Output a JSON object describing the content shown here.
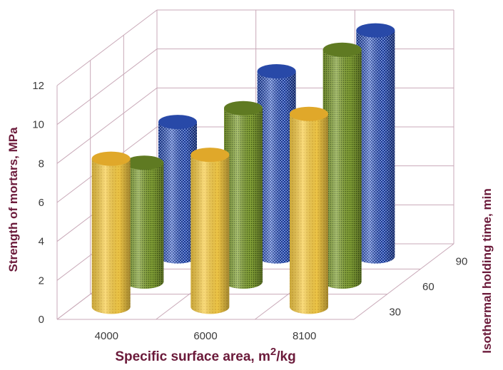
{
  "chart_data": {
    "type": "bar",
    "style": "3d-cylinder",
    "title": "",
    "xlabel": "Specific surface area, m²/kg",
    "xlabel_main": "Specific surface area, m",
    "xlabel_sup": "2",
    "xlabel_tail": "/kg",
    "ylabel": "Strength of mortars, MPa",
    "zlabel": "Isothermal holding time, min",
    "categories": [
      "4000",
      "6000",
      "8100"
    ],
    "depth_categories": [
      "30",
      "60",
      "90"
    ],
    "ylim": [
      0,
      12
    ],
    "yticks": [
      "0",
      "2",
      "4",
      "6",
      "8",
      "10",
      "12"
    ],
    "grid": true,
    "series": [
      {
        "name": "30",
        "color": "#f5c542",
        "values": [
          7.6,
          7.8,
          9.9
        ]
      },
      {
        "name": "60",
        "color": "#7a9a2e",
        "values": [
          6.1,
          8.9,
          11.9
        ]
      },
      {
        "name": "90",
        "color": "#2f55b8",
        "values": [
          6.9,
          9.5,
          11.6
        ]
      }
    ]
  }
}
